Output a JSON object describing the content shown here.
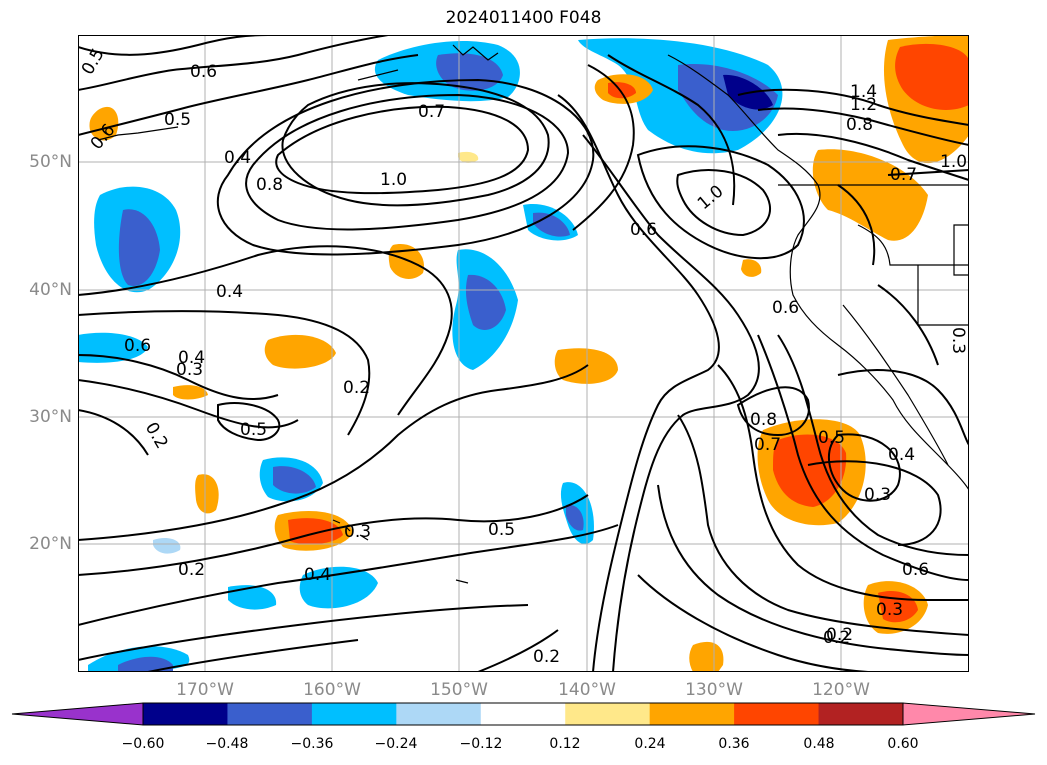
{
  "title": "2024011400 F048",
  "lat_labels": [
    "50°N",
    "40°N",
    "30°N",
    "20°N"
  ],
  "lon_labels": [
    "170°W",
    "160°W",
    "150°W",
    "140°W",
    "130°W",
    "120°W"
  ],
  "colorbar": {
    "ticks": [
      "−0.60",
      "−0.48",
      "−0.36",
      "−0.24",
      "−0.12",
      "0.12",
      "0.24",
      "0.36",
      "0.48",
      "0.60"
    ],
    "colors": [
      "#9932CC",
      "#00008B",
      "#3A5FCD",
      "#00BFFF",
      "#ADD8F6",
      "#FFFFFF",
      "#FFE88A",
      "#FFA500",
      "#FF4500",
      "#B22222",
      "#FF88AA"
    ]
  },
  "contour_labels": [
    "0.5",
    "0.6",
    "0.5",
    "0.6",
    "0.4",
    "0.8",
    "0.7",
    "1.0",
    "0.4",
    "0.3",
    "0.6",
    "0.4",
    "0.5",
    "0.2",
    "0.2",
    "0.5",
    "0.3",
    "0.2",
    "0.2",
    "0.4",
    "0.2",
    "1.0",
    "0.6",
    "1.4",
    "1.2",
    "0.8",
    "1.0",
    "0.7",
    "0.6",
    "0.3",
    "0.8",
    "0.7",
    "0.5",
    "0.4",
    "0.3",
    "0.6",
    "0.3",
    "0.2"
  ],
  "colors": {
    "contour": "#000000",
    "grid": "#b0b0b0",
    "coast": "#000000",
    "axis_label": "#8a8a8a"
  }
}
